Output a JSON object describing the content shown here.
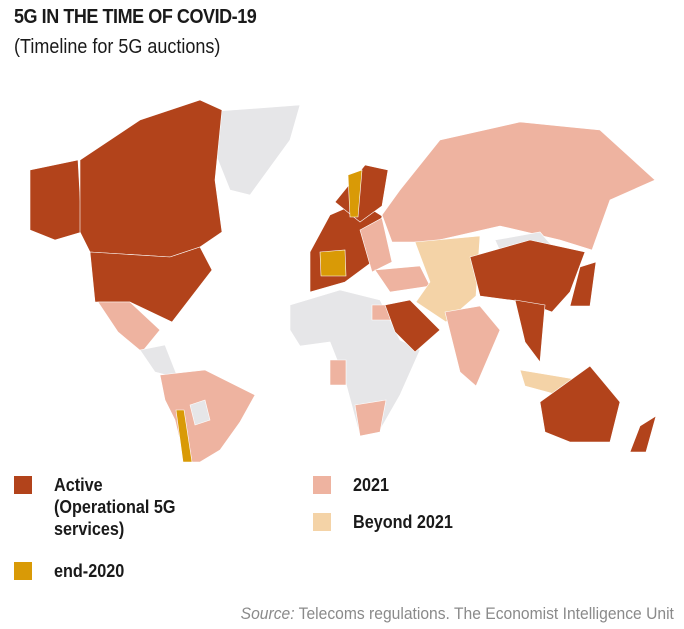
{
  "title": "5G IN THE TIME OF COVID-19",
  "subtitle": "(Timeline for 5G auctions)",
  "colors": {
    "active": "#b2431b",
    "end_2020": "#d99a06",
    "y2021": "#eeb3a0",
    "beyond_2021": "#f4d3a7",
    "no_data": "#e6e6e8"
  },
  "legend": [
    {
      "label": "Active\n(Operational 5G\nservices)",
      "color": "#b2431b"
    },
    {
      "label": "end-2020",
      "color": "#d99a06"
    },
    {
      "label": "2021",
      "color": "#eeb3a0"
    },
    {
      "label": "Beyond 2021",
      "color": "#f4d3a7"
    }
  ],
  "source": {
    "prefix": "Source:",
    "text": " Telecoms regulations. The Economist Intelligence Unit"
  }
}
